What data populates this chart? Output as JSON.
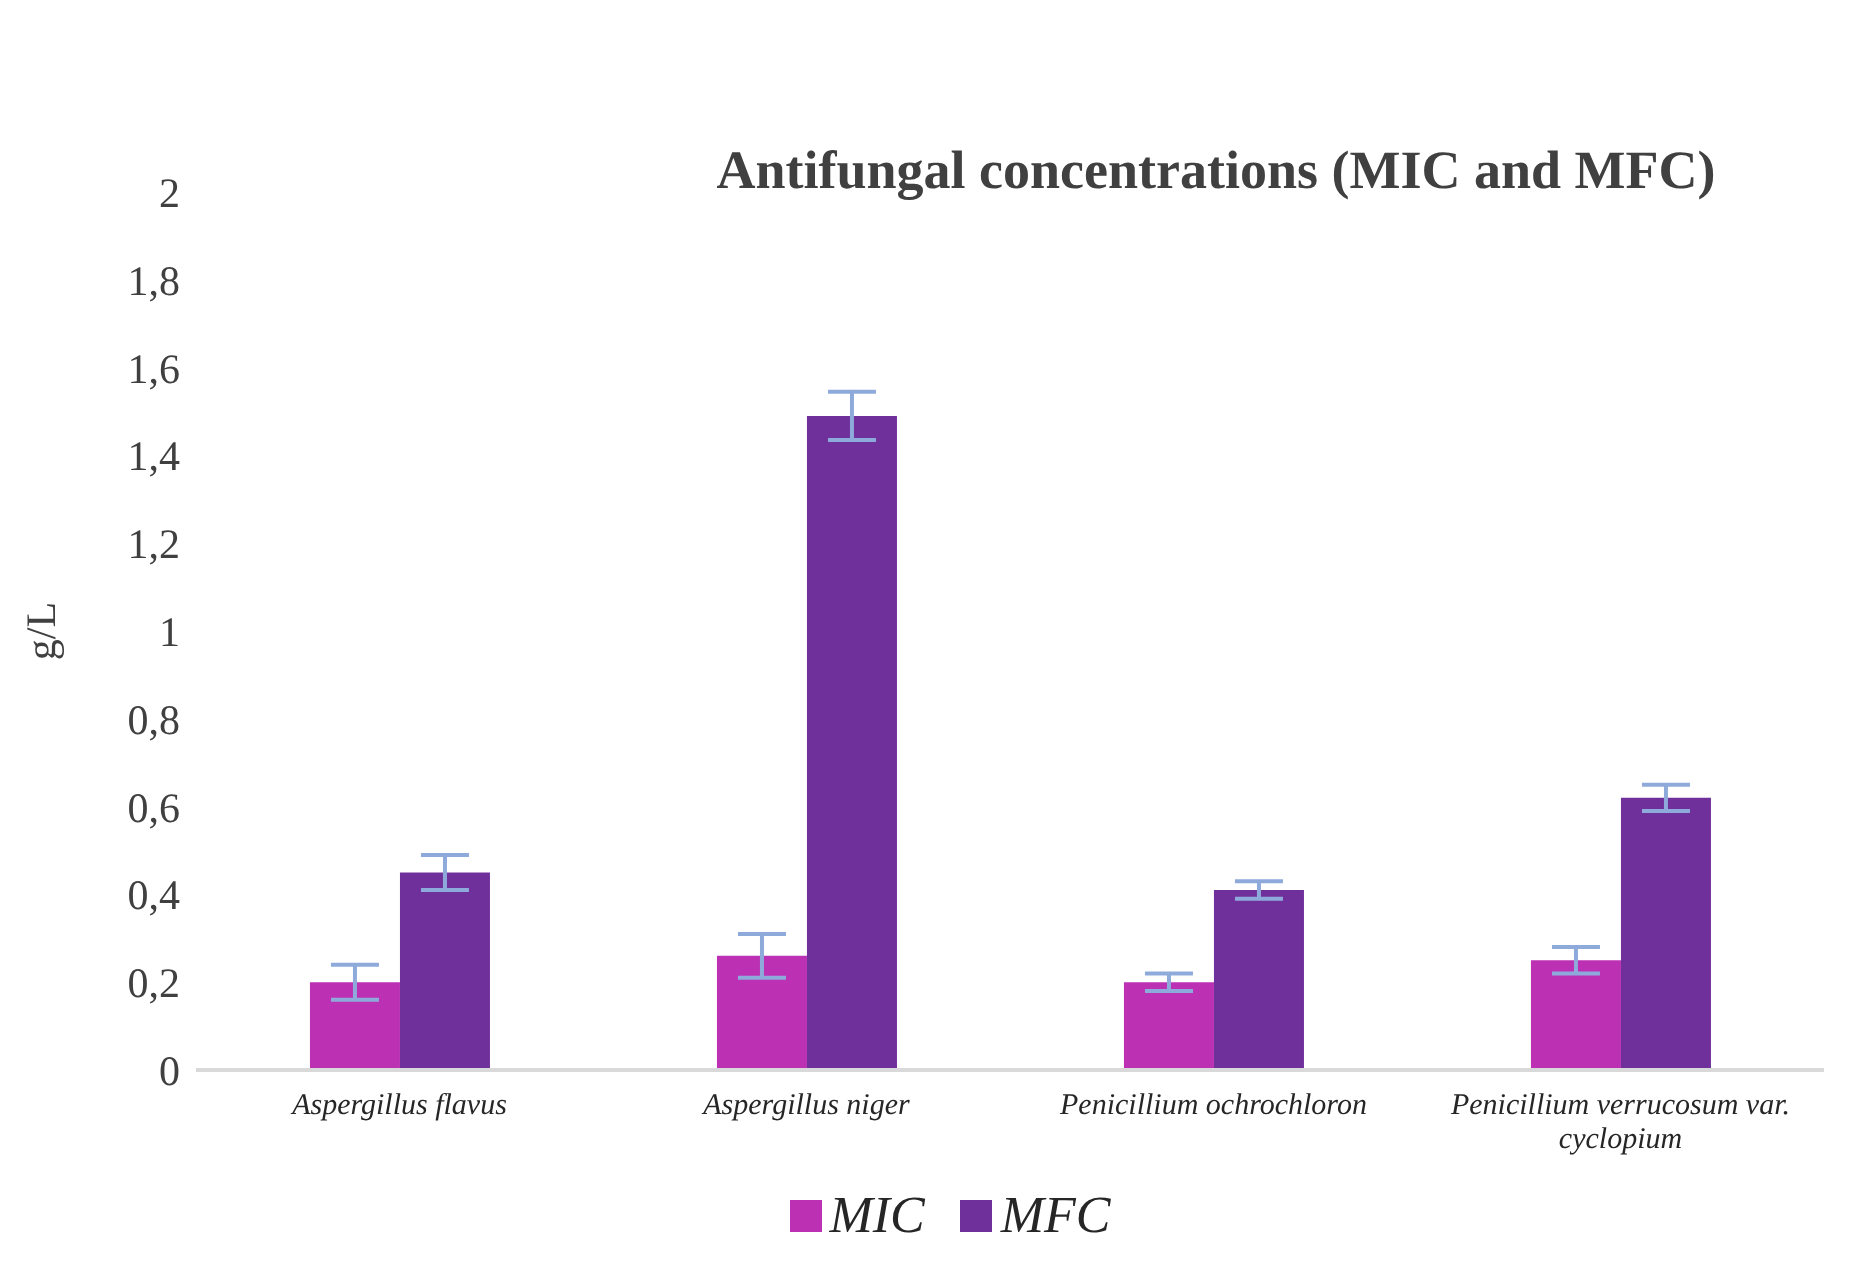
{
  "chart_data": {
    "type": "bar",
    "title": "Antifungal concentrations (MIC and MFC)",
    "ylabel": "g/L",
    "categories": [
      "Aspergillus flavus",
      "Aspergillus niger",
      "Penicillium ochrochloron",
      "Penicillium verrucosum var. cyclopium"
    ],
    "series": [
      {
        "name": "MIC",
        "color": "#bc31b4",
        "values": [
          0.2,
          0.26,
          0.2,
          0.25
        ],
        "errors": [
          0.04,
          0.05,
          0.02,
          0.03
        ]
      },
      {
        "name": "MFC",
        "color": "#70309c",
        "values": [
          0.45,
          1.49,
          0.41,
          0.62
        ],
        "errors": [
          0.04,
          0.055,
          0.02,
          0.03
        ]
      }
    ],
    "ylim": [
      0,
      2
    ],
    "yticks": [
      0,
      {
        "value": 0.2,
        "label": "0,2"
      },
      {
        "value": 0.4,
        "label": "0,4"
      },
      {
        "value": 0.6,
        "label": "0,6"
      },
      {
        "value": 0.8,
        "label": "0,8"
      },
      1,
      {
        "value": 1.2,
        "label": "1,2"
      },
      {
        "value": 1.4,
        "label": "1,4"
      },
      {
        "value": 1.6,
        "label": "1,6"
      },
      {
        "value": 1.8,
        "label": "1,8"
      },
      2
    ],
    "grid": false,
    "legend": "bottom"
  }
}
